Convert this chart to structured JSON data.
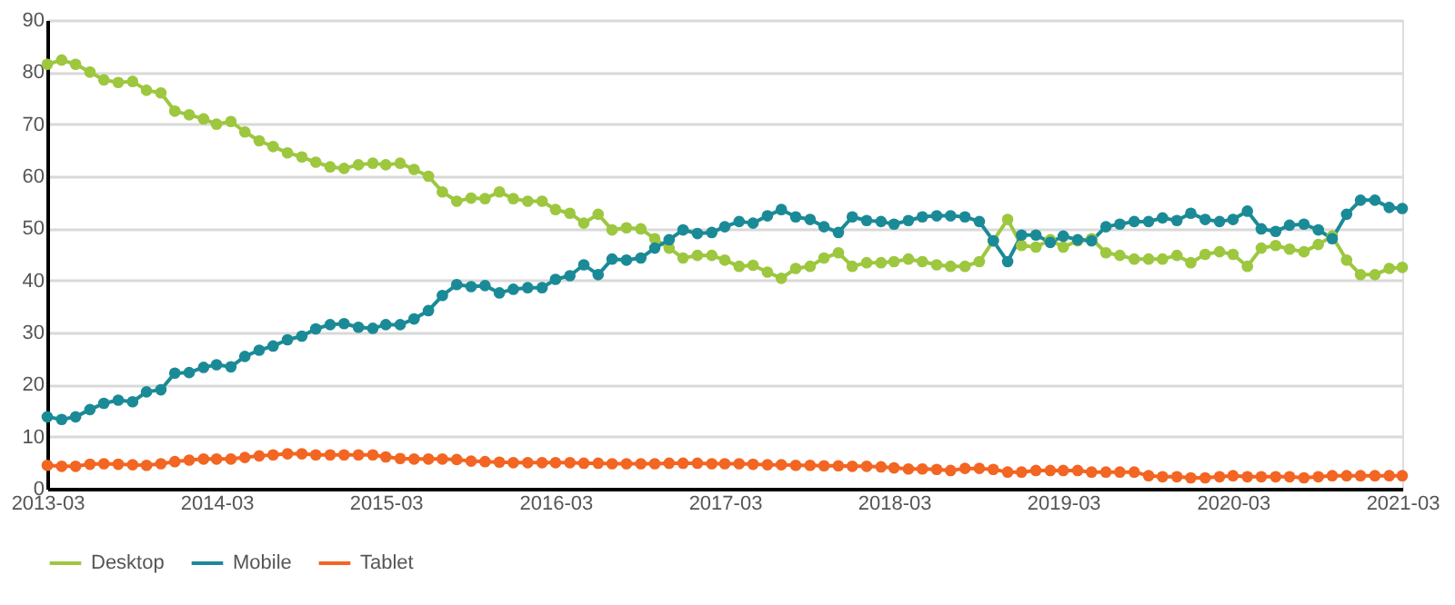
{
  "chart_data": {
    "type": "line",
    "x": [
      "2013-03",
      "2013-04",
      "2013-05",
      "2013-06",
      "2013-07",
      "2013-08",
      "2013-09",
      "2013-10",
      "2013-11",
      "2013-12",
      "2014-01",
      "2014-02",
      "2014-03",
      "2014-04",
      "2014-05",
      "2014-06",
      "2014-07",
      "2014-08",
      "2014-09",
      "2014-10",
      "2014-11",
      "2014-12",
      "2015-01",
      "2015-02",
      "2015-03",
      "2015-04",
      "2015-05",
      "2015-06",
      "2015-07",
      "2015-08",
      "2015-09",
      "2015-10",
      "2015-11",
      "2015-12",
      "2016-01",
      "2016-02",
      "2016-03",
      "2016-04",
      "2016-05",
      "2016-06",
      "2016-07",
      "2016-08",
      "2016-09",
      "2016-10",
      "2016-11",
      "2016-12",
      "2017-01",
      "2017-02",
      "2017-03",
      "2017-04",
      "2017-05",
      "2017-06",
      "2017-07",
      "2017-08",
      "2017-09",
      "2017-10",
      "2017-11",
      "2017-12",
      "2018-01",
      "2018-02",
      "2018-03",
      "2018-04",
      "2018-05",
      "2018-06",
      "2018-07",
      "2018-08",
      "2018-09",
      "2018-10",
      "2018-11",
      "2018-12",
      "2019-01",
      "2019-02",
      "2019-03",
      "2019-04",
      "2019-05",
      "2019-06",
      "2019-07",
      "2019-08",
      "2019-09",
      "2019-10",
      "2019-11",
      "2019-12",
      "2020-01",
      "2020-02",
      "2020-03",
      "2020-04",
      "2020-05",
      "2020-06",
      "2020-07",
      "2020-08",
      "2020-09",
      "2020-10",
      "2020-11",
      "2020-12",
      "2021-01",
      "2021-02",
      "2021-03"
    ],
    "series": [
      {
        "name": "Desktop",
        "color": "#9dc73f",
        "values": [
          81.5,
          82.3,
          81.5,
          80,
          78.5,
          78,
          78.2,
          76.5,
          76,
          72.5,
          71.8,
          71,
          70,
          70.5,
          68.5,
          66.8,
          65.7,
          64.5,
          63.7,
          62.7,
          61.8,
          61.5,
          62.2,
          62.5,
          62.2,
          62.5,
          61.3,
          60,
          57,
          55.2,
          55.8,
          55.7,
          57,
          55.7,
          55.2,
          55.2,
          53.6,
          52.9,
          51,
          52.7,
          49.7,
          50.1,
          49.9,
          48,
          46.2,
          44.3,
          44.8,
          44.8,
          43.9,
          42.7,
          42.9,
          41.6,
          40.4,
          42.3,
          42.7,
          44.3,
          45.3,
          42.7,
          43.4,
          43.4,
          43.6,
          44.1,
          43.6,
          43,
          42.7,
          42.7,
          43.6,
          47.6,
          51.7,
          46.7,
          46.4,
          47.8,
          46.4,
          47.6,
          48,
          45.3,
          44.8,
          44.1,
          44.1,
          44.1,
          44.8,
          43.4,
          45,
          45.5,
          45,
          42.7,
          46.2,
          46.7,
          46,
          45.5,
          46.9,
          48.5,
          43.9,
          41.1,
          41.1,
          42.3,
          42.5
        ]
      },
      {
        "name": "Mobile",
        "color": "#1b8a97",
        "values": [
          13.8,
          13.3,
          13.8,
          15.2,
          16.4,
          17,
          16.7,
          18.6,
          19,
          22.2,
          22.3,
          23.3,
          23.8,
          23.4,
          25.4,
          26.6,
          27.4,
          28.6,
          29.3,
          30.7,
          31.5,
          31.7,
          31,
          30.8,
          31.5,
          31.5,
          32.6,
          34.2,
          37.1,
          39.2,
          38.8,
          39,
          37.6,
          38.3,
          38.6,
          38.6,
          40.2,
          40.9,
          43,
          41.1,
          44.1,
          43.9,
          44.3,
          46.2,
          47.8,
          49.7,
          49,
          49.2,
          50.3,
          51.3,
          51,
          52.4,
          53.6,
          52.2,
          51.7,
          50.3,
          49.2,
          52.2,
          51.5,
          51.3,
          50.8,
          51.5,
          52.2,
          52.4,
          52.4,
          52.2,
          51.3,
          47.6,
          43.6,
          48.7,
          48.7,
          47.3,
          48.5,
          47.8,
          47.6,
          50.3,
          50.8,
          51.3,
          51.3,
          52,
          51.5,
          52.9,
          51.7,
          51.3,
          51.7,
          53.3,
          49.9,
          49.4,
          50.6,
          50.8,
          49.7,
          48,
          52.7,
          55.4,
          55.4,
          54,
          53.8
        ]
      },
      {
        "name": "Tablet",
        "color": "#f26522",
        "values": [
          4.5,
          4.3,
          4.3,
          4.7,
          4.8,
          4.7,
          4.6,
          4.5,
          4.8,
          5.2,
          5.5,
          5.7,
          5.7,
          5.7,
          6,
          6.3,
          6.5,
          6.7,
          6.7,
          6.5,
          6.5,
          6.5,
          6.5,
          6.5,
          6.1,
          5.8,
          5.7,
          5.7,
          5.7,
          5.6,
          5.3,
          5.2,
          5.1,
          5,
          5,
          5,
          5,
          5,
          4.9,
          4.9,
          4.8,
          4.8,
          4.8,
          4.8,
          4.9,
          4.9,
          4.9,
          4.8,
          4.8,
          4.8,
          4.7,
          4.6,
          4.6,
          4.5,
          4.5,
          4.4,
          4.4,
          4.3,
          4.3,
          4.2,
          4,
          3.8,
          3.8,
          3.7,
          3.5,
          3.9,
          3.9,
          3.7,
          3.2,
          3.2,
          3.5,
          3.5,
          3.5,
          3.5,
          3.2,
          3.2,
          3.2,
          3.2,
          2.5,
          2.3,
          2.3,
          2.1,
          2.1,
          2.3,
          2.5,
          2.3,
          2.3,
          2.3,
          2.3,
          2.1,
          2.3,
          2.5,
          2.5,
          2.5,
          2.5,
          2.5,
          2.5
        ]
      }
    ],
    "xlim": [
      "2013-03",
      "2021-03"
    ],
    "xticks": [
      "2013-03",
      "2014-03",
      "2015-03",
      "2016-03",
      "2017-03",
      "2018-03",
      "2019-03",
      "2020-03",
      "2021-03"
    ],
    "ylim": [
      0,
      90
    ],
    "yticks": [
      0,
      10,
      20,
      30,
      40,
      50,
      60,
      70,
      80,
      90
    ],
    "grid": "y",
    "legend": "bottom",
    "marker": "circle",
    "line_style": "solid"
  }
}
